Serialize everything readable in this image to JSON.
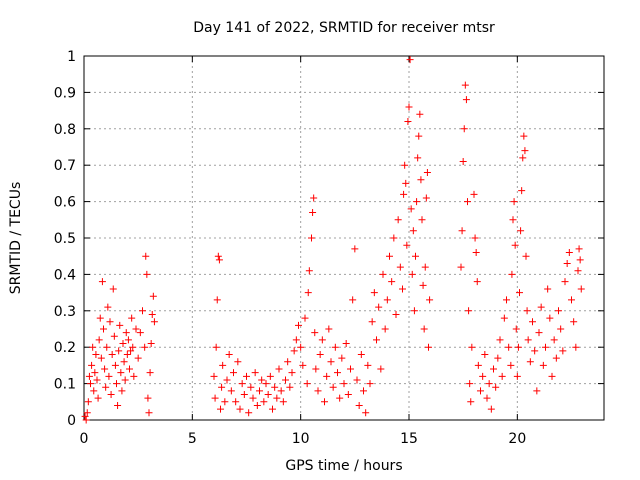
{
  "chart_data": {
    "type": "scatter",
    "title": "Day 141 of 2022, SRMTID for receiver mtsr",
    "xlabel": "GPS time / hours",
    "ylabel": "SRMTID / TECUs",
    "xlim": [
      0,
      24
    ],
    "ylim": [
      0,
      1
    ],
    "x_ticks": [
      "0",
      "5",
      "10",
      "15",
      "20"
    ],
    "y_ticks": [
      "0",
      "0.1",
      "0.2",
      "0.3",
      "0.4",
      "0.5",
      "0.6",
      "0.7",
      "0.8",
      "0.9",
      "1"
    ],
    "grid": true,
    "marker": "+",
    "color": "#ff0000",
    "series": [
      {
        "points": [
          [
            0.05,
            0.01
          ],
          [
            0.1,
            0.0
          ],
          [
            0.15,
            0.02
          ],
          [
            0.2,
            0.05
          ],
          [
            0.25,
            0.12
          ],
          [
            0.3,
            0.1
          ],
          [
            0.35,
            0.15
          ],
          [
            0.4,
            0.2
          ],
          [
            0.45,
            0.08
          ],
          [
            0.5,
            0.13
          ],
          [
            0.55,
            0.18
          ],
          [
            0.6,
            0.11
          ],
          [
            0.65,
            0.06
          ],
          [
            0.7,
            0.22
          ],
          [
            0.75,
            0.28
          ],
          [
            0.8,
            0.17
          ],
          [
            0.85,
            0.38
          ],
          [
            0.9,
            0.25
          ],
          [
            0.95,
            0.14
          ],
          [
            1.0,
            0.09
          ],
          [
            1.05,
            0.2
          ],
          [
            1.1,
            0.31
          ],
          [
            1.15,
            0.12
          ],
          [
            1.2,
            0.27
          ],
          [
            1.25,
            0.07
          ],
          [
            1.3,
            0.18
          ],
          [
            1.35,
            0.36
          ],
          [
            1.4,
            0.23
          ],
          [
            1.45,
            0.15
          ],
          [
            1.5,
            0.1
          ],
          [
            1.55,
            0.04
          ],
          [
            1.6,
            0.19
          ],
          [
            1.65,
            0.26
          ],
          [
            1.7,
            0.13
          ],
          [
            1.75,
            0.08
          ],
          [
            1.8,
            0.21
          ],
          [
            1.85,
            0.16
          ],
          [
            1.9,
            0.11
          ],
          [
            1.95,
            0.24
          ],
          [
            2.0,
            0.18
          ],
          [
            2.05,
            0.22
          ],
          [
            2.1,
            0.14
          ],
          [
            2.15,
            0.19
          ],
          [
            2.2,
            0.28
          ],
          [
            2.25,
            0.2
          ],
          [
            2.3,
            0.12
          ],
          [
            2.4,
            0.25
          ],
          [
            2.5,
            0.17
          ],
          [
            2.6,
            0.24
          ],
          [
            2.7,
            0.3
          ],
          [
            2.8,
            0.2
          ],
          [
            2.85,
            0.45
          ],
          [
            2.9,
            0.4
          ],
          [
            2.95,
            0.06
          ],
          [
            3.0,
            0.02
          ],
          [
            3.05,
            0.13
          ],
          [
            3.1,
            0.21
          ],
          [
            3.15,
            0.29
          ],
          [
            3.2,
            0.34
          ],
          [
            3.25,
            0.27
          ],
          [
            6.0,
            0.12
          ],
          [
            6.05,
            0.06
          ],
          [
            6.1,
            0.2
          ],
          [
            6.15,
            0.33
          ],
          [
            6.2,
            0.45
          ],
          [
            6.25,
            0.44
          ],
          [
            6.3,
            0.03
          ],
          [
            6.35,
            0.09
          ],
          [
            6.4,
            0.15
          ],
          [
            6.5,
            0.05
          ],
          [
            6.6,
            0.11
          ],
          [
            6.7,
            0.18
          ],
          [
            6.8,
            0.08
          ],
          [
            6.9,
            0.13
          ],
          [
            7.0,
            0.05
          ],
          [
            7.1,
            0.16
          ],
          [
            7.2,
            0.03
          ],
          [
            7.3,
            0.1
          ],
          [
            7.4,
            0.07
          ],
          [
            7.5,
            0.12
          ],
          [
            7.6,
            0.02
          ],
          [
            7.7,
            0.09
          ],
          [
            7.8,
            0.06
          ],
          [
            7.9,
            0.13
          ],
          [
            8.0,
            0.04
          ],
          [
            8.1,
            0.08
          ],
          [
            8.2,
            0.11
          ],
          [
            8.3,
            0.05
          ],
          [
            8.4,
            0.1
          ],
          [
            8.5,
            0.07
          ],
          [
            8.6,
            0.12
          ],
          [
            8.7,
            0.03
          ],
          [
            8.8,
            0.09
          ],
          [
            8.9,
            0.06
          ],
          [
            9.0,
            0.14
          ],
          [
            9.1,
            0.08
          ],
          [
            9.2,
            0.05
          ],
          [
            9.3,
            0.11
          ],
          [
            9.4,
            0.16
          ],
          [
            9.5,
            0.09
          ],
          [
            9.6,
            0.13
          ],
          [
            9.7,
            0.19
          ],
          [
            9.8,
            0.22
          ],
          [
            9.9,
            0.26
          ],
          [
            10.0,
            0.2
          ],
          [
            10.1,
            0.15
          ],
          [
            10.2,
            0.28
          ],
          [
            10.3,
            0.1
          ],
          [
            10.35,
            0.35
          ],
          [
            10.4,
            0.41
          ],
          [
            10.5,
            0.5
          ],
          [
            10.55,
            0.57
          ],
          [
            10.6,
            0.61
          ],
          [
            10.65,
            0.24
          ],
          [
            10.7,
            0.14
          ],
          [
            10.8,
            0.08
          ],
          [
            10.9,
            0.18
          ],
          [
            11.0,
            0.22
          ],
          [
            11.1,
            0.05
          ],
          [
            11.2,
            0.12
          ],
          [
            11.3,
            0.25
          ],
          [
            11.4,
            0.16
          ],
          [
            11.5,
            0.09
          ],
          [
            11.6,
            0.2
          ],
          [
            11.7,
            0.13
          ],
          [
            11.8,
            0.06
          ],
          [
            11.9,
            0.17
          ],
          [
            12.0,
            0.1
          ],
          [
            12.1,
            0.21
          ],
          [
            12.2,
            0.07
          ],
          [
            12.3,
            0.14
          ],
          [
            12.4,
            0.33
          ],
          [
            12.5,
            0.47
          ],
          [
            12.6,
            0.11
          ],
          [
            12.7,
            0.04
          ],
          [
            12.8,
            0.18
          ],
          [
            12.9,
            0.08
          ],
          [
            13.0,
            0.02
          ],
          [
            13.1,
            0.15
          ],
          [
            13.2,
            0.1
          ],
          [
            13.3,
            0.27
          ],
          [
            13.4,
            0.35
          ],
          [
            13.5,
            0.22
          ],
          [
            13.6,
            0.31
          ],
          [
            13.7,
            0.14
          ],
          [
            13.8,
            0.4
          ],
          [
            13.9,
            0.25
          ],
          [
            14.0,
            0.33
          ],
          [
            14.1,
            0.45
          ],
          [
            14.2,
            0.38
          ],
          [
            14.3,
            0.5
          ],
          [
            14.4,
            0.29
          ],
          [
            14.5,
            0.55
          ],
          [
            14.6,
            0.42
          ],
          [
            14.7,
            0.36
          ],
          [
            14.75,
            0.62
          ],
          [
            14.8,
            0.7
          ],
          [
            14.85,
            0.65
          ],
          [
            14.9,
            0.48
          ],
          [
            14.95,
            0.82
          ],
          [
            15.0,
            0.86
          ],
          [
            15.05,
            0.99
          ],
          [
            15.1,
            0.58
          ],
          [
            15.15,
            0.4
          ],
          [
            15.2,
            0.52
          ],
          [
            15.25,
            0.3
          ],
          [
            15.3,
            0.45
          ],
          [
            15.35,
            0.6
          ],
          [
            15.4,
            0.72
          ],
          [
            15.45,
            0.78
          ],
          [
            15.5,
            0.84
          ],
          [
            15.55,
            0.66
          ],
          [
            15.6,
            0.55
          ],
          [
            15.65,
            0.37
          ],
          [
            15.7,
            0.25
          ],
          [
            15.75,
            0.42
          ],
          [
            15.8,
            0.61
          ],
          [
            15.85,
            0.68
          ],
          [
            15.9,
            0.2
          ],
          [
            15.95,
            0.33
          ],
          [
            17.4,
            0.42
          ],
          [
            17.45,
            0.52
          ],
          [
            17.5,
            0.71
          ],
          [
            17.55,
            0.8
          ],
          [
            17.6,
            0.92
          ],
          [
            17.65,
            0.88
          ],
          [
            17.7,
            0.6
          ],
          [
            17.75,
            0.3
          ],
          [
            17.8,
            0.1
          ],
          [
            17.85,
            0.05
          ],
          [
            17.9,
            0.2
          ],
          [
            18.0,
            0.62
          ],
          [
            18.05,
            0.5
          ],
          [
            18.1,
            0.46
          ],
          [
            18.15,
            0.38
          ],
          [
            18.2,
            0.15
          ],
          [
            18.3,
            0.08
          ],
          [
            18.4,
            0.12
          ],
          [
            18.5,
            0.18
          ],
          [
            18.6,
            0.06
          ],
          [
            18.7,
            0.1
          ],
          [
            18.8,
            0.03
          ],
          [
            18.9,
            0.14
          ],
          [
            19.0,
            0.09
          ],
          [
            19.1,
            0.17
          ],
          [
            19.2,
            0.22
          ],
          [
            19.3,
            0.12
          ],
          [
            19.4,
            0.28
          ],
          [
            19.5,
            0.33
          ],
          [
            19.6,
            0.2
          ],
          [
            19.7,
            0.15
          ],
          [
            19.75,
            0.4
          ],
          [
            19.8,
            0.55
          ],
          [
            19.85,
            0.6
          ],
          [
            19.9,
            0.48
          ],
          [
            19.95,
            0.25
          ],
          [
            20.0,
            0.12
          ],
          [
            20.05,
            0.2
          ],
          [
            20.1,
            0.35
          ],
          [
            20.15,
            0.52
          ],
          [
            20.2,
            0.63
          ],
          [
            20.25,
            0.72
          ],
          [
            20.3,
            0.78
          ],
          [
            20.35,
            0.74
          ],
          [
            20.4,
            0.45
          ],
          [
            20.45,
            0.3
          ],
          [
            20.5,
            0.22
          ],
          [
            20.6,
            0.16
          ],
          [
            20.7,
            0.27
          ],
          [
            20.8,
            0.19
          ],
          [
            20.9,
            0.08
          ],
          [
            21.0,
            0.24
          ],
          [
            21.1,
            0.31
          ],
          [
            21.2,
            0.15
          ],
          [
            21.3,
            0.2
          ],
          [
            21.4,
            0.36
          ],
          [
            21.5,
            0.28
          ],
          [
            21.6,
            0.12
          ],
          [
            21.7,
            0.22
          ],
          [
            21.8,
            0.17
          ],
          [
            21.9,
            0.3
          ],
          [
            22.0,
            0.25
          ],
          [
            22.1,
            0.19
          ],
          [
            22.2,
            0.38
          ],
          [
            22.3,
            0.43
          ],
          [
            22.4,
            0.46
          ],
          [
            22.5,
            0.33
          ],
          [
            22.6,
            0.27
          ],
          [
            22.7,
            0.2
          ],
          [
            22.8,
            0.41
          ],
          [
            22.85,
            0.47
          ],
          [
            22.9,
            0.44
          ],
          [
            22.95,
            0.36
          ]
        ]
      }
    ]
  }
}
